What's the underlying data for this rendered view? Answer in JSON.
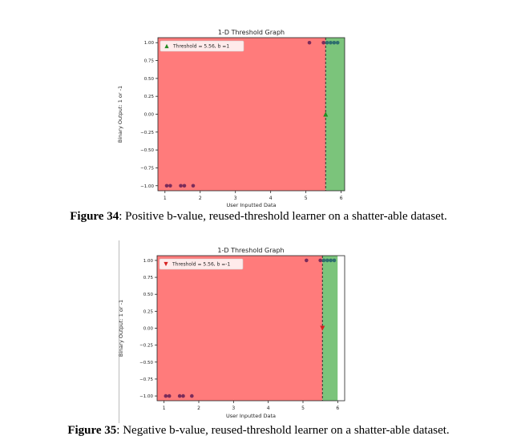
{
  "charts": [
    {
      "caption": {
        "label": "Figure 34",
        "text": ": Positive b-value, reused-threshold learner on a shatter-able dataset."
      },
      "chart_data": {
        "type": "scatter",
        "title": "1-D Threshold Graph",
        "xlabel": "User Inputted Data",
        "ylabel": "Binary Output: 1 or -1",
        "xlim": [
          0.8,
          6.1
        ],
        "ylim": [
          -1.07,
          1.07
        ],
        "xticks": [
          1,
          2,
          3,
          4,
          5,
          6
        ],
        "yticks": [
          -1.0,
          -0.75,
          -0.5,
          -0.25,
          0.0,
          0.25,
          0.5,
          0.75,
          1.0
        ],
        "ytick_labels": [
          "−1.00",
          "−0.75",
          "−0.50",
          "−0.25",
          "0.00",
          "0.25",
          "0.50",
          "0.75",
          "1.00"
        ],
        "grid": false,
        "threshold": 5.56,
        "b": 1,
        "legend": {
          "label": "Threshold = 5.56, b =1",
          "marker": "triangle-up",
          "placement": "top-left"
        },
        "regions": [
          {
            "x_from": 0.8,
            "x_to": 5.56,
            "color": "#ff7b7b"
          },
          {
            "x_from": 5.56,
            "x_to": 6.1,
            "color": "#7bc47b"
          }
        ],
        "points_neg": [
          [
            1.05,
            -1
          ],
          [
            1.15,
            -1
          ],
          [
            1.45,
            -1
          ],
          [
            1.55,
            -1
          ],
          [
            1.8,
            -1
          ]
        ],
        "points_pos": [
          [
            5.1,
            1
          ],
          [
            5.5,
            1
          ],
          [
            5.6,
            1
          ],
          [
            5.7,
            1
          ],
          [
            5.8,
            1
          ],
          [
            5.9,
            1
          ]
        ],
        "threshold_marker": {
          "x": 5.56,
          "y": 0.0,
          "direction": "up",
          "color": "#228b22"
        }
      }
    },
    {
      "caption": {
        "label": "Figure 35",
        "text": ": Negative b-value, reused-threshold learner on a shatter-able dataset."
      },
      "chart_data": {
        "type": "scatter",
        "title": "1-D Threshold Graph",
        "xlabel": "User Inputted Data",
        "ylabel": "Binary Output: 1 or -1",
        "xlim": [
          0.8,
          6.2
        ],
        "ylim": [
          -1.07,
          1.07
        ],
        "xticks": [
          1,
          2,
          3,
          4,
          5,
          6
        ],
        "yticks": [
          -1.0,
          -0.75,
          -0.5,
          -0.25,
          0.0,
          0.25,
          0.5,
          0.75,
          1.0
        ],
        "ytick_labels": [
          "−1.00",
          "−0.75",
          "−0.50",
          "−0.25",
          "0.00",
          "0.25",
          "0.50",
          "0.75",
          "1.00"
        ],
        "grid": false,
        "threshold": 5.56,
        "b": -1,
        "legend": {
          "label": "Threshold = 5.56, b =-1",
          "marker": "triangle-down",
          "placement": "top-left"
        },
        "regions": [
          {
            "x_from": 0.8,
            "x_to": 5.56,
            "color": "#ff7b7b"
          },
          {
            "x_from": 5.56,
            "x_to": 6.0,
            "color": "#7bc47b"
          },
          {
            "x_from": 6.0,
            "x_to": 6.2,
            "color": "#ffffff"
          }
        ],
        "points_neg": [
          [
            1.05,
            -1
          ],
          [
            1.15,
            -1
          ],
          [
            1.45,
            -1
          ],
          [
            1.55,
            -1
          ],
          [
            1.8,
            -1
          ]
        ],
        "points_pos": [
          [
            5.1,
            1
          ],
          [
            5.5,
            1
          ],
          [
            5.6,
            1
          ],
          [
            5.7,
            1
          ],
          [
            5.8,
            1
          ],
          [
            5.9,
            1
          ]
        ],
        "threshold_marker": {
          "x": 5.56,
          "y": 0.0,
          "direction": "down",
          "color": "#d62020"
        }
      }
    }
  ]
}
